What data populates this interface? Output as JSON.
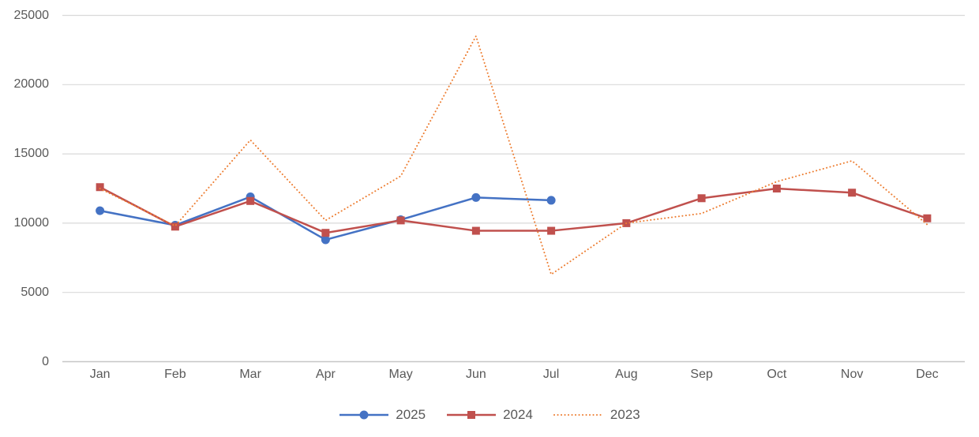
{
  "chart_data": {
    "type": "line",
    "title": "",
    "xlabel": "",
    "ylabel": "",
    "categories": [
      "Jan",
      "Feb",
      "Mar",
      "Apr",
      "May",
      "Jun",
      "Jul",
      "Aug",
      "Sep",
      "Oct",
      "Nov",
      "Dec"
    ],
    "y_ticks": [
      0,
      5000,
      10000,
      15000,
      20000,
      25000
    ],
    "ylim": [
      0,
      25000
    ],
    "grid": true,
    "legend_position": "bottom",
    "axis_color": "#C6C6C6",
    "gridline_color": "#D9D9D9",
    "series": [
      {
        "name": "2025",
        "color": "#4472C4",
        "marker": "circle",
        "line_style": "solid",
        "values": [
          10900,
          9850,
          11900,
          8800,
          10250,
          11850,
          11650
        ]
      },
      {
        "name": "2024",
        "color": "#C0504D",
        "marker": "square",
        "line_style": "solid",
        "values": [
          12600,
          9750,
          11600,
          9300,
          10200,
          9450,
          9450,
          10000,
          11800,
          12500,
          12200,
          10350
        ]
      },
      {
        "name": "2023",
        "color": "#ED7D31",
        "marker": "none",
        "line_style": "dotted",
        "values": [
          12500,
          9800,
          16000,
          10200,
          13400,
          23500,
          6300,
          10000,
          10700,
          13000,
          14500,
          9900
        ]
      }
    ]
  }
}
